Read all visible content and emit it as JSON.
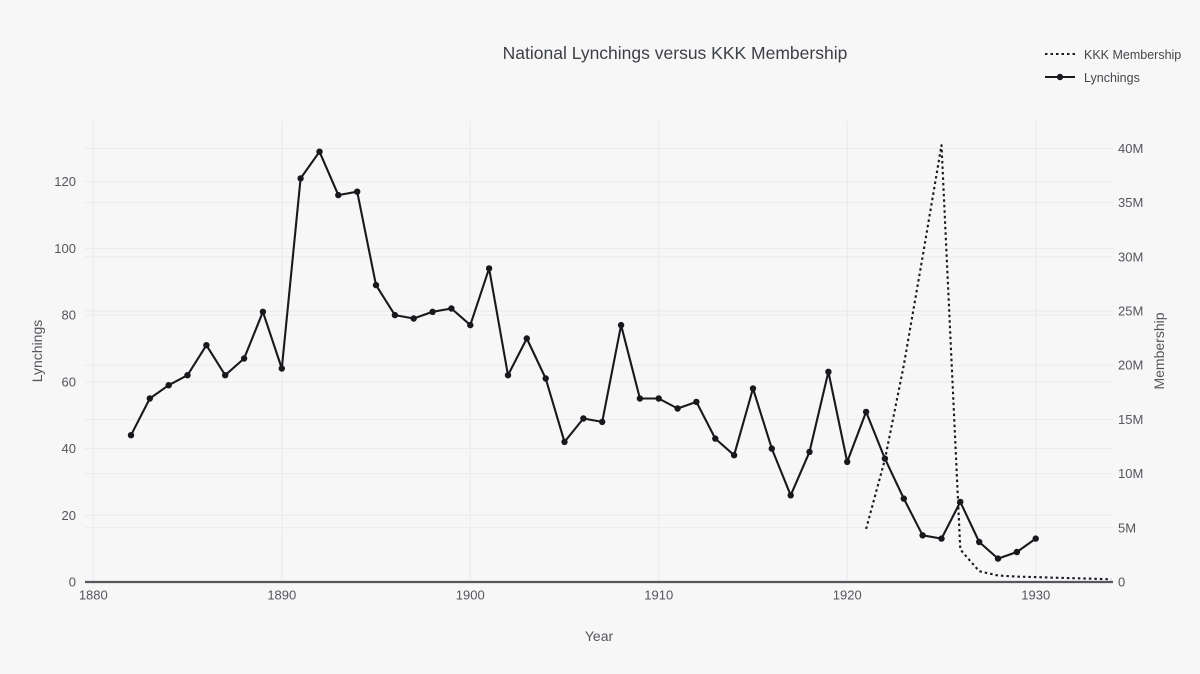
{
  "title": "National Lynchings versus KKK Membership",
  "legend": {
    "items": [
      {
        "label": "KKK Membership",
        "style": "dotted-line"
      },
      {
        "label": "Lynchings",
        "style": "solid-line-with-marker"
      }
    ]
  },
  "axes": {
    "x": {
      "label": "Year",
      "ticks": [
        1880,
        1890,
        1900,
        1910,
        1920,
        1930
      ],
      "range": [
        1879.56,
        1934.1
      ]
    },
    "y_left": {
      "label": "Lynchings",
      "ticks": [
        0,
        20,
        40,
        60,
        80,
        100,
        120
      ],
      "range": [
        0,
        138.2
      ]
    },
    "y_right": {
      "label": "Membership",
      "tick_labels": [
        "0",
        "5M",
        "10M",
        "15M",
        "20M",
        "25M",
        "30M",
        "35M",
        "40M"
      ],
      "tick_values": [
        0,
        5,
        10,
        15,
        20,
        25,
        30,
        35,
        40
      ],
      "range": [
        0,
        42.53
      ]
    }
  },
  "chart_data": {
    "type": "line",
    "title": "National Lynchings versus KKK Membership",
    "xlabel": "Year",
    "ylabel_left": "Lynchings",
    "ylabel_right": "Membership",
    "grid": true,
    "legend_position": "top-right",
    "series": [
      {
        "name": "KKK Membership",
        "yaxis": "right",
        "units": "millions of members",
        "line": "dotted",
        "markers": false,
        "x": [
          1921,
          1922,
          1923,
          1924,
          1925,
          1926,
          1927,
          1928,
          1929,
          1930,
          1931,
          1932,
          1933,
          1934
        ],
        "y": [
          4.9,
          11.3,
          20,
          30,
          40.3,
          3,
          1,
          0.6,
          0.5,
          0.45,
          0.4,
          0.35,
          0.3,
          0.25
        ]
      },
      {
        "name": "Lynchings",
        "yaxis": "left",
        "units": "lynchings per year",
        "line": "solid",
        "markers": true,
        "x": [
          1882,
          1883,
          1884,
          1885,
          1886,
          1887,
          1888,
          1889,
          1890,
          1891,
          1892,
          1893,
          1894,
          1895,
          1896,
          1897,
          1898,
          1899,
          1900,
          1901,
          1902,
          1903,
          1904,
          1905,
          1906,
          1907,
          1908,
          1909,
          1910,
          1911,
          1912,
          1913,
          1914,
          1915,
          1916,
          1917,
          1918,
          1919,
          1920,
          1921,
          1922,
          1923,
          1924,
          1925,
          1926,
          1927,
          1928,
          1929,
          1930
        ],
        "y": [
          44,
          55,
          59,
          62,
          71,
          62,
          67,
          81,
          64,
          121,
          129,
          116,
          117,
          89,
          80,
          79,
          81,
          82,
          77,
          94,
          62,
          73,
          61,
          42,
          49,
          48,
          77,
          55,
          55,
          52,
          54,
          43,
          38,
          58,
          40,
          26,
          39,
          63,
          36,
          51,
          37,
          25,
          14,
          13,
          24,
          12,
          7,
          9,
          13
        ]
      }
    ]
  },
  "colors": {
    "background": "#f7f7f8",
    "grid": "#e9eaec",
    "axis_line": "#56585c",
    "tick_text": "#53565b",
    "title_text": "#3d4045",
    "series": "#17191c"
  }
}
